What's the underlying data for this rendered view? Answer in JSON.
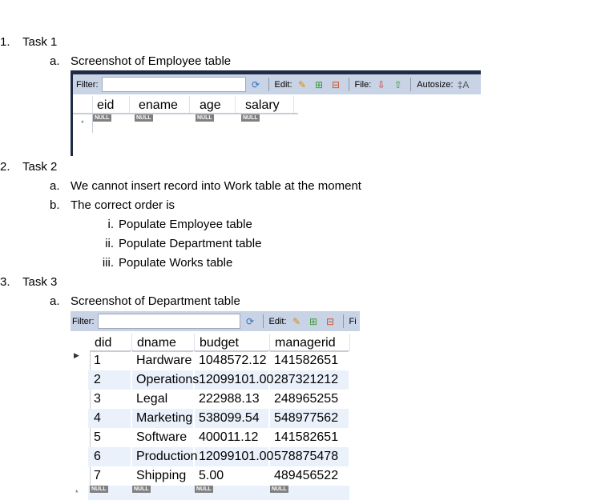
{
  "doc": {
    "task1": {
      "num": "1.",
      "title": "Task 1",
      "a_num": "a.",
      "a_text": "Screenshot of Employee table"
    },
    "task2": {
      "num": "2.",
      "title": "Task 2",
      "a_num": "a.",
      "a_text": "We cannot insert record into Work table at the moment",
      "b_num": "b.",
      "b_text": "The correct order is",
      "steps": [
        {
          "num": "i.",
          "text": "Populate Employee table"
        },
        {
          "num": "ii.",
          "text": "Populate Department table"
        },
        {
          "num": "iii.",
          "text": "Populate Works table"
        }
      ]
    },
    "task3": {
      "num": "3.",
      "title": "Task 3",
      "a_num": "a.",
      "a_text": "Screenshot of Department table"
    }
  },
  "toolbar": {
    "filter": "Filter:",
    "edit": "Edit:",
    "file": "File:",
    "autosize": "Autosize:",
    "file_cut": "Fi",
    "filter_value": ""
  },
  "employee": {
    "columns": [
      "eid",
      "ename",
      "age",
      "salary"
    ],
    "null": "NULL",
    "new_row_marker": "*"
  },
  "department": {
    "columns": [
      "did",
      "dname",
      "budget",
      "managerid"
    ],
    "rows": [
      [
        "1",
        "Hardware",
        "1048572.12",
        "141582651"
      ],
      [
        "2",
        "Operations",
        "12099101.00",
        "287321212"
      ],
      [
        "3",
        "Legal",
        "222988.13",
        "248965255"
      ],
      [
        "4",
        "Marketing",
        "538099.54",
        "548977562"
      ],
      [
        "5",
        "Software",
        "400011.12",
        "141582651"
      ],
      [
        "6",
        "Production",
        "12099101.00",
        "578875478"
      ],
      [
        "7",
        "Shipping",
        "5.00",
        "489456522"
      ]
    ],
    "null": "NULL",
    "new_row_marker": "*",
    "current_row_marker": "▶"
  }
}
